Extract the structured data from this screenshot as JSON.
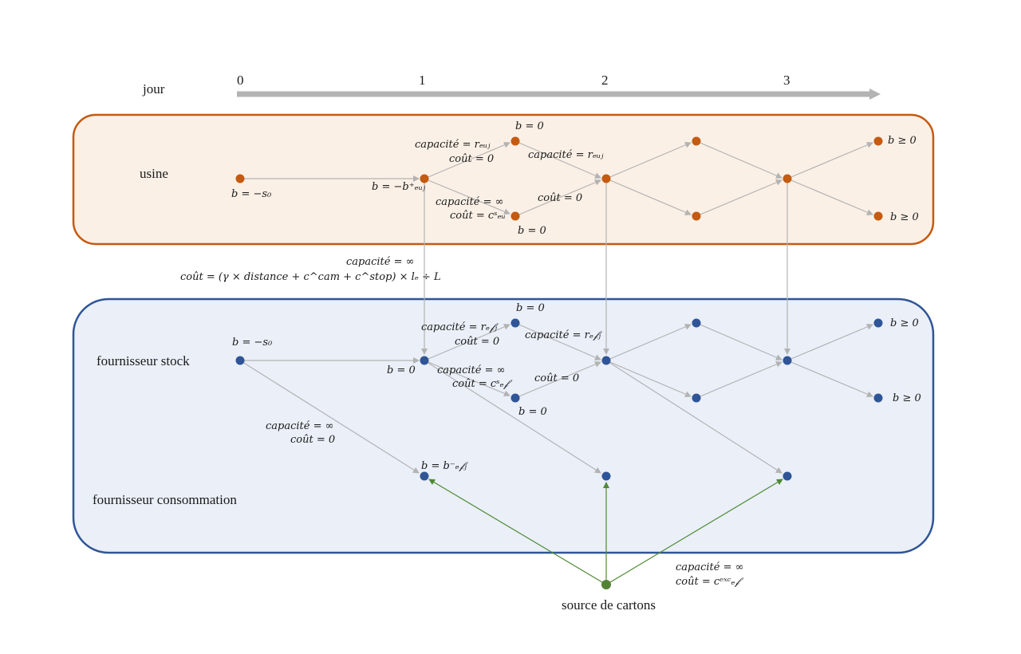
{
  "timeline": {
    "label": "jour",
    "days": [
      "0",
      "1",
      "2",
      "3"
    ]
  },
  "rows": {
    "usine": "usine",
    "stock": "fournisseur stock",
    "conso": "fournisseur consommation",
    "source": "source de cartons"
  },
  "labels": {
    "u_init": "b = −s₀",
    "u_b1": "b = −b⁺ₑᵤⱼ",
    "u_top": "b = 0",
    "u_bot": "b = 0",
    "u_end_top": "b ≥ 0",
    "u_end_bot": "b ≥ 0",
    "u_cap_r": "capacité = rₑᵤⱼ",
    "u_cout0": "coût = 0",
    "u_cap_r2": "capacité = rₑᵤⱼ",
    "u_cap_inf": "capacité = ∞",
    "u_cout_s": "coût = cˢₑᵤ",
    "u_cout0b": "coût = 0",
    "trans_cap": "capacité = ∞",
    "trans_cout": "coût = (γ × distance + c^cam + c^stop) × lₑ ÷ L",
    "s_init": "b = −s₀",
    "s_b1": "b = 0",
    "s_top": "b = 0",
    "s_bot": "b = 0",
    "s_end_top": "b ≥ 0",
    "s_end_bot": "b ≥ 0",
    "s_cap_r": "capacité = rₑ𝒻ⱼ",
    "s_cout0": "coût = 0",
    "s_cap_r2": "capacité = rₑ𝒻ⱼ",
    "s_cap_inf": "capacité = ∞",
    "s_cout_s": "coût = cˢₑ𝒻",
    "s_cout0b": "coût = 0",
    "c_cap_inf": "capacité = ∞",
    "c_cout0": "coût = 0",
    "c_b": "b = b⁻ₑ𝒻ⱼ",
    "src_cap": "capacité = ∞",
    "src_cout": "coût = cᵉˣᶜₑ𝒻"
  },
  "colors": {
    "usine_node": "#c55a11",
    "usine_fill": "#fbf0e6",
    "usine_border": "#c55a11",
    "stock_node": "#2f5597",
    "stock_fill": "#eaeff8",
    "stock_border": "#2f5597",
    "source_node": "#548235",
    "edge": "#b3b3b3",
    "source_edge": "#4e8a34"
  }
}
